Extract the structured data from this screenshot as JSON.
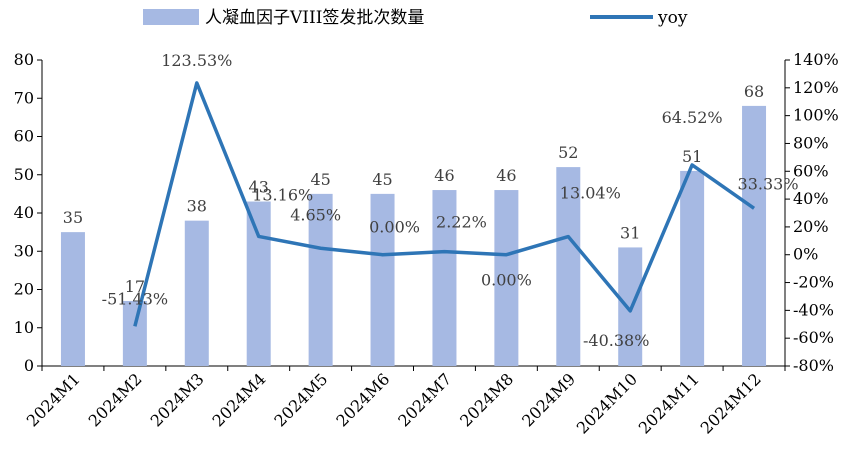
{
  "chart_data": {
    "type": "bar+line",
    "categories": [
      "2024M1",
      "2024M2",
      "2024M3",
      "2024M4",
      "2024M5",
      "2024M6",
      "2024M7",
      "2024M8",
      "2024M9",
      "2024M10",
      "2024M11",
      "2024M12"
    ],
    "series": [
      {
        "name": "人凝血因子VIII签发批次数量",
        "type": "bar",
        "axis": "left",
        "values": [
          35,
          17,
          38,
          43,
          45,
          45,
          46,
          46,
          52,
          31,
          51,
          68
        ],
        "labels": [
          "35",
          "17",
          "38",
          "43",
          "45",
          "45",
          "46",
          "46",
          "52",
          "31",
          "51",
          "68"
        ]
      },
      {
        "name": "yoy",
        "type": "line",
        "axis": "right",
        "values": [
          null,
          -51.43,
          123.53,
          13.16,
          4.65,
          0.0,
          2.22,
          0.0,
          13.04,
          -40.38,
          64.52,
          33.33
        ],
        "labels": [
          null,
          "-51.43%",
          "123.53%",
          "13.16%",
          "4.65%",
          "0.00%",
          "2.22%",
          "0.00%",
          "13.04%",
          "-40.38%",
          "64.52%",
          "33.33%"
        ]
      }
    ],
    "y_left": {
      "range": [
        0,
        80
      ],
      "ticks": [
        "0",
        "10",
        "20",
        "30",
        "40",
        "50",
        "60",
        "70",
        "80"
      ]
    },
    "y_right": {
      "range": [
        -80,
        140
      ],
      "ticks": [
        "-80%",
        "-60%",
        "-40%",
        "-20%",
        "0%",
        "20%",
        "40%",
        "60%",
        "80%",
        "100%",
        "120%",
        "140%"
      ]
    },
    "legend_position": "top",
    "grid": false
  },
  "colors": {
    "bar": "#a6b9e3",
    "line": "#2e75b6",
    "axis": "#000000",
    "label": "#404040"
  }
}
